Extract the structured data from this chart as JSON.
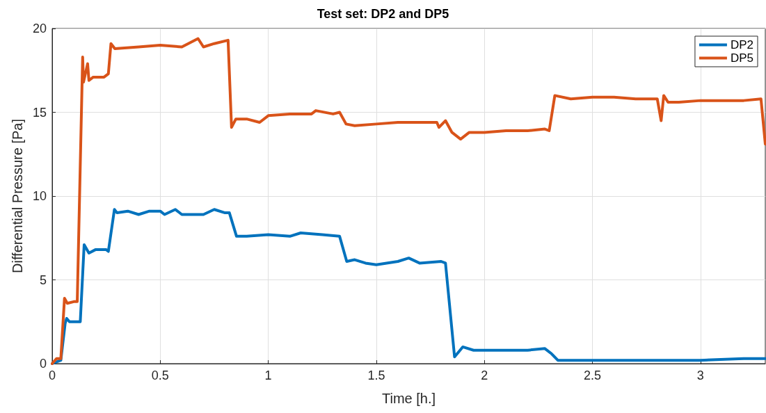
{
  "chart_data": {
    "type": "line",
    "title": "Test set: DP2 and DP5",
    "xlabel": "Time [h.]",
    "ylabel": "Differential Pressure [Pa]",
    "xlim": [
      0,
      3.3
    ],
    "xticks": [
      0,
      0.5,
      1,
      1.5,
      2,
      2.5,
      3
    ],
    "ylim": [
      0,
      20
    ],
    "yticks": [
      0,
      5,
      10,
      15,
      20
    ],
    "grid": true,
    "legend": "top right",
    "line_style": "solid",
    "marker": "none",
    "series": [
      {
        "name": "DP2",
        "color": "#0072bd",
        "x": [
          0,
          0.04,
          0.06,
          0.067,
          0.08,
          0.13,
          0.148,
          0.17,
          0.2,
          0.25,
          0.26,
          0.288,
          0.3,
          0.35,
          0.4,
          0.45,
          0.5,
          0.52,
          0.57,
          0.6,
          0.7,
          0.75,
          0.8,
          0.82,
          0.853,
          0.9,
          1.0,
          1.1,
          1.15,
          1.25,
          1.33,
          1.363,
          1.4,
          1.45,
          1.5,
          1.6,
          1.65,
          1.7,
          1.8,
          1.82,
          1.862,
          1.9,
          1.95,
          2.0,
          2.1,
          2.2,
          2.28,
          2.31,
          2.34,
          2.5,
          2.8,
          3.0,
          3.2,
          3.25,
          3.3
        ],
        "values": [
          0,
          0.2,
          2.4,
          2.7,
          2.5,
          2.5,
          7.1,
          6.6,
          6.8,
          6.8,
          6.7,
          9.2,
          9.0,
          9.1,
          8.9,
          9.1,
          9.1,
          8.9,
          9.2,
          8.9,
          8.9,
          9.2,
          9.0,
          9.0,
          7.6,
          7.6,
          7.7,
          7.6,
          7.8,
          7.7,
          7.6,
          6.1,
          6.2,
          6.0,
          5.9,
          6.1,
          6.3,
          6.0,
          6.1,
          6.0,
          0.4,
          1.0,
          0.8,
          0.8,
          0.8,
          0.8,
          0.9,
          0.6,
          0.2,
          0.2,
          0.2,
          0.2,
          0.3,
          0.3,
          0.3
        ]
      },
      {
        "name": "DP5",
        "color": "#d95319",
        "x": [
          0,
          0.02,
          0.04,
          0.057,
          0.07,
          0.1,
          0.116,
          0.141,
          0.145,
          0.164,
          0.17,
          0.19,
          0.24,
          0.26,
          0.272,
          0.29,
          0.4,
          0.5,
          0.6,
          0.675,
          0.7,
          0.75,
          0.814,
          0.83,
          0.85,
          0.9,
          0.96,
          1.0,
          1.1,
          1.2,
          1.22,
          1.3,
          1.33,
          1.36,
          1.4,
          1.5,
          1.6,
          1.7,
          1.78,
          1.79,
          1.82,
          1.85,
          1.89,
          1.93,
          2.0,
          2.1,
          2.2,
          2.28,
          2.3,
          2.326,
          2.4,
          2.5,
          2.6,
          2.7,
          2.8,
          2.818,
          2.83,
          2.85,
          2.9,
          3.0,
          3.1,
          3.2,
          3.28,
          3.3
        ],
        "values": [
          0,
          0.3,
          0.3,
          3.9,
          3.6,
          3.7,
          3.7,
          18.3,
          16.8,
          17.9,
          16.9,
          17.1,
          17.1,
          17.3,
          19.1,
          18.8,
          18.9,
          19.0,
          18.9,
          19.4,
          18.9,
          19.1,
          19.3,
          14.1,
          14.6,
          14.6,
          14.4,
          14.8,
          14.9,
          14.9,
          15.1,
          14.9,
          15.0,
          14.3,
          14.2,
          14.3,
          14.4,
          14.4,
          14.4,
          14.1,
          14.5,
          13.8,
          13.4,
          13.8,
          13.8,
          13.9,
          13.9,
          14.0,
          13.9,
          16.0,
          15.8,
          15.9,
          15.9,
          15.8,
          15.8,
          14.5,
          16.0,
          15.6,
          15.6,
          15.7,
          15.7,
          15.7,
          15.8,
          13.1
        ]
      }
    ]
  }
}
